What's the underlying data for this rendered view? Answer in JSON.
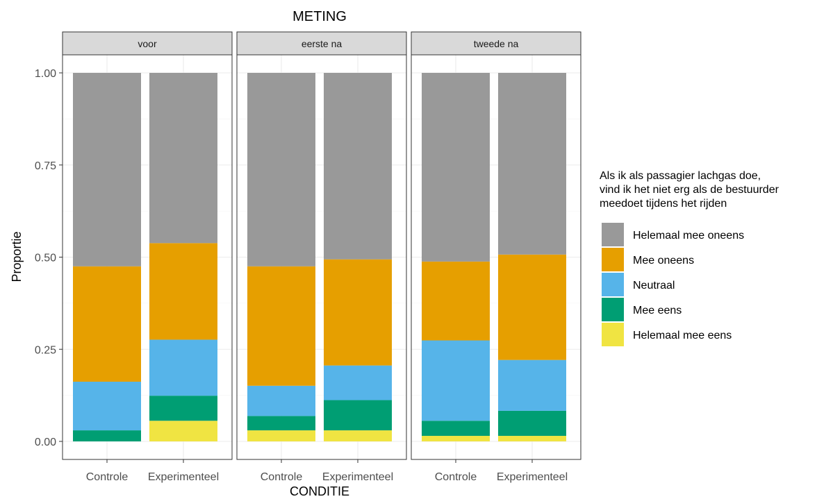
{
  "chart_data": {
    "type": "bar",
    "stacked": true,
    "title": "METING",
    "xlabel": "CONDITIE",
    "ylabel": "Proportie",
    "ylim": [
      0,
      1
    ],
    "yticks": [
      "0.00",
      "0.25",
      "0.50",
      "0.75",
      "1.00"
    ],
    "grid": true,
    "legend_placement": "right",
    "legend_title": [
      "Als ik als passagier lachgas doe,",
      "vind ik het niet erg als de bestuurder",
      "meedoet tijdens het rijden"
    ],
    "categories": [
      "Controle",
      "Experimenteel"
    ],
    "series": [
      {
        "name": "Helemaal mee oneens",
        "color": "#999999"
      },
      {
        "name": "Mee oneens",
        "color": "#E69F00"
      },
      {
        "name": "Neutraal",
        "color": "#56B4E9"
      },
      {
        "name": "Mee eens",
        "color": "#009E73"
      },
      {
        "name": "Helemaal mee eens",
        "color": "#F0E442"
      }
    ],
    "panels": [
      {
        "label": "voor",
        "bars": [
          {
            "category": "Controle",
            "values": [
              0.525,
              0.313,
              0.132,
              0.03,
              0.0
            ]
          },
          {
            "category": "Experimenteel",
            "values": [
              0.462,
              0.262,
              0.152,
              0.068,
              0.056
            ]
          }
        ]
      },
      {
        "label": "eerste na",
        "bars": [
          {
            "category": "Controle",
            "values": [
              0.525,
              0.324,
              0.082,
              0.039,
              0.03
            ]
          },
          {
            "category": "Experimenteel",
            "values": [
              0.506,
              0.288,
              0.094,
              0.082,
              0.03
            ]
          }
        ]
      },
      {
        "label": "tweede na",
        "bars": [
          {
            "category": "Controle",
            "values": [
              0.512,
              0.214,
              0.218,
              0.041,
              0.015
            ]
          },
          {
            "category": "Experimenteel",
            "values": [
              0.493,
              0.286,
              0.138,
              0.068,
              0.015
            ]
          }
        ]
      }
    ]
  }
}
